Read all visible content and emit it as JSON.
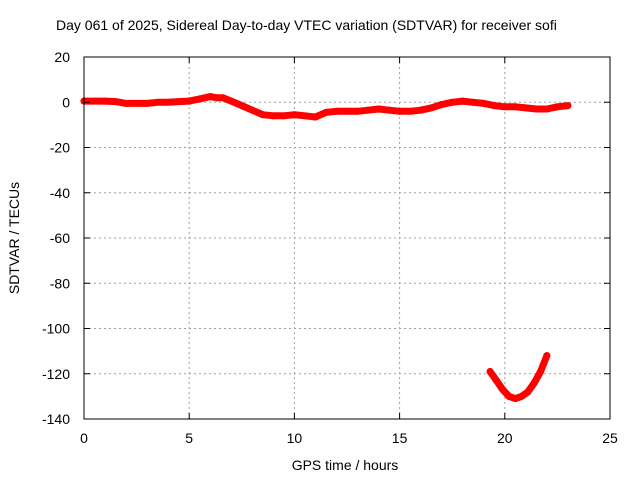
{
  "chart_data": {
    "type": "scatter",
    "title": "Day 061 of 2025, Sidereal Day-to-day VTEC variation (SDTVAR) for receiver sofi",
    "xlabel": "GPS time / hours",
    "ylabel": "SDTVAR / TECUs",
    "xlim": [
      0,
      25
    ],
    "ylim": [
      -140,
      20
    ],
    "xticks": [
      0,
      5,
      10,
      15,
      20,
      25
    ],
    "yticks": [
      20,
      0,
      -20,
      -40,
      -60,
      -80,
      -100,
      -120,
      -140
    ],
    "grid": true,
    "series_color": "#ff0000",
    "series": [
      {
        "x": [
          0.0,
          0.5,
          1.0,
          1.5,
          2.0,
          2.5,
          3.0,
          3.5,
          4.0,
          4.5,
          5.0,
          5.5,
          6.0,
          6.3,
          6.6,
          7.0,
          7.5,
          8.0,
          8.5,
          9.0,
          9.5,
          10.0,
          10.5,
          11.0,
          11.5,
          12.0,
          12.5,
          13.0,
          13.5,
          14.0,
          14.5,
          15.0,
          15.5,
          16.0,
          16.5,
          17.0,
          17.5,
          18.0,
          18.5,
          19.0,
          19.5,
          20.0,
          20.5,
          21.0,
          21.5,
          22.0,
          22.5,
          23.0
        ],
        "y": [
          0.5,
          0.5,
          0.5,
          0.3,
          -0.5,
          -0.5,
          -0.5,
          0.0,
          0.0,
          0.3,
          0.5,
          1.5,
          2.5,
          2.0,
          2.0,
          0.5,
          -1.5,
          -3.5,
          -5.5,
          -6.0,
          -6.0,
          -5.5,
          -6.0,
          -6.5,
          -4.5,
          -4.0,
          -4.0,
          -4.0,
          -3.5,
          -3.0,
          -3.5,
          -4.0,
          -4.0,
          -3.5,
          -2.5,
          -1.0,
          0.0,
          0.5,
          0.0,
          -0.5,
          -1.5,
          -2.0,
          -2.0,
          -2.5,
          -3.0,
          -3.0,
          -2.0,
          -1.5
        ]
      },
      {
        "x": [
          19.3,
          19.6,
          19.9,
          20.2,
          20.5,
          20.8,
          21.1,
          21.4,
          21.7,
          22.0
        ],
        "y": [
          -119,
          -123,
          -127,
          -130,
          -131,
          -130,
          -128,
          -124,
          -119,
          -112
        ]
      }
    ]
  }
}
